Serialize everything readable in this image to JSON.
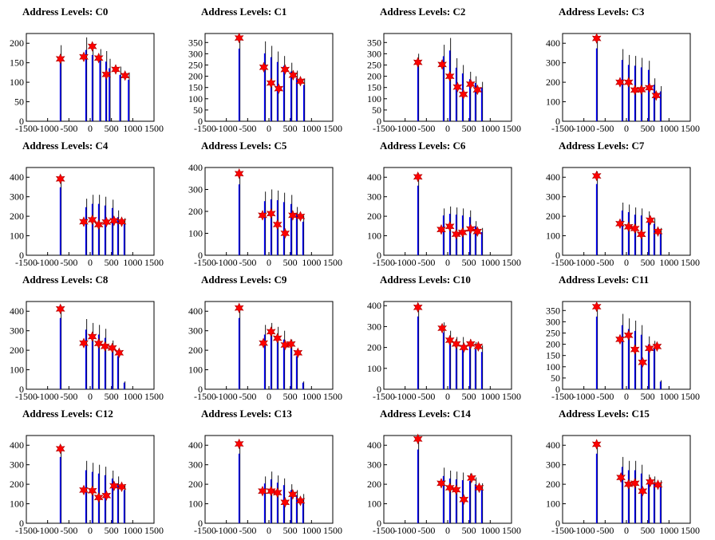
{
  "style": {
    "peak_color": "#0000ff",
    "marker_color": "#ff0000",
    "axis_color": "#000000",
    "background": "#ffffff"
  },
  "shared_axis": {
    "x_ticks": [
      -1500,
      -1000,
      -500,
      0,
      500,
      1000,
      1500
    ],
    "x_tick_labels": [
      "-1500",
      "-1000",
      "-500",
      "0",
      "500",
      "1000",
      "1500"
    ],
    "xlim": [
      -1500,
      1500
    ]
  },
  "chart_data": [
    {
      "type": "bar",
      "title": "Address Levels: C0",
      "ylim": [
        0,
        225
      ],
      "y_ticks": [
        0,
        50,
        100,
        150,
        200
      ],
      "peaks_x": [
        -700,
        -100,
        50,
        230,
        370,
        450,
        700,
        900
      ],
      "peaks_y": [
        195,
        215,
        200,
        185,
        180,
        160,
        140,
        125
      ],
      "markers_x": [
        -700,
        -150,
        50,
        200,
        380,
        600,
        820
      ],
      "markers_y": [
        160,
        165,
        192,
        162,
        120,
        133,
        117
      ]
    },
    {
      "type": "bar",
      "title": "Address Levels: C1",
      "ylim": [
        0,
        390
      ],
      "y_ticks": [
        0,
        50,
        100,
        150,
        200,
        250,
        300,
        350
      ],
      "peaks_x": [
        -700,
        -100,
        50,
        200,
        350,
        520,
        650,
        820
      ],
      "peaks_y": [
        380,
        355,
        335,
        310,
        290,
        260,
        225,
        190
      ],
      "markers_x": [
        -700,
        -120,
        50,
        230,
        380,
        570,
        740
      ],
      "markers_y": [
        370,
        240,
        170,
        145,
        230,
        205,
        178
      ]
    },
    {
      "type": "bar",
      "title": "Address Levels: C2",
      "ylim": [
        0,
        390
      ],
      "y_ticks": [
        0,
        50,
        100,
        150,
        200,
        250,
        300,
        350
      ],
      "peaks_x": [
        -700,
        -100,
        50,
        200,
        350,
        520,
        650,
        800
      ],
      "peaks_y": [
        300,
        340,
        370,
        280,
        250,
        220,
        200,
        175
      ],
      "markers_x": [
        -700,
        -130,
        50,
        230,
        370,
        540,
        700
      ],
      "markers_y": [
        262,
        252,
        200,
        152,
        120,
        165,
        140
      ]
    },
    {
      "type": "bar",
      "title": "Address Levels: C3",
      "ylim": [
        0,
        450
      ],
      "y_ticks": [
        0,
        100,
        200,
        300,
        400
      ],
      "peaks_x": [
        -700,
        -100,
        50,
        200,
        350,
        520,
        650,
        800
      ],
      "peaks_y": [
        440,
        370,
        340,
        335,
        325,
        310,
        220,
        180
      ],
      "markers_x": [
        -700,
        -150,
        50,
        200,
        350,
        540,
        700
      ],
      "markers_y": [
        425,
        200,
        200,
        160,
        162,
        172,
        132
      ]
    },
    {
      "type": "bar",
      "title": "Address Levels: C4",
      "ylim": [
        0,
        450
      ],
      "y_ticks": [
        0,
        100,
        200,
        300,
        400
      ],
      "peaks_x": [
        -700,
        -100,
        50,
        200,
        350,
        520,
        650,
        800
      ],
      "peaks_y": [
        410,
        290,
        310,
        310,
        300,
        285,
        230,
        190
      ],
      "markers_x": [
        -700,
        -150,
        50,
        200,
        380,
        560,
        740
      ],
      "markers_y": [
        392,
        172,
        182,
        157,
        170,
        177,
        172
      ]
    },
    {
      "type": "bar",
      "title": "Address Levels: C5",
      "ylim": [
        0,
        400
      ],
      "y_ticks": [
        0,
        100,
        200,
        300,
        400
      ],
      "peaks_x": [
        -700,
        -100,
        50,
        200,
        350,
        520,
        650,
        800
      ],
      "peaks_y": [
        380,
        290,
        300,
        295,
        285,
        275,
        220,
        180
      ],
      "markers_x": [
        -700,
        -150,
        50,
        200,
        380,
        560,
        740
      ],
      "markers_y": [
        372,
        182,
        190,
        140,
        100,
        182,
        177
      ]
    },
    {
      "type": "bar",
      "title": "Address Levels: C6",
      "ylim": [
        0,
        450
      ],
      "y_ticks": [
        0,
        100,
        200,
        300,
        400
      ],
      "peaks_x": [
        -700,
        -100,
        50,
        200,
        350,
        520,
        650,
        800
      ],
      "peaks_y": [
        420,
        240,
        250,
        245,
        240,
        230,
        175,
        140
      ],
      "markers_x": [
        -700,
        -150,
        50,
        200,
        350,
        540,
        700
      ],
      "markers_y": [
        402,
        132,
        148,
        108,
        117,
        135,
        122
      ]
    },
    {
      "type": "bar",
      "title": "Address Levels: C7",
      "ylim": [
        0,
        450
      ],
      "y_ticks": [
        0,
        100,
        200,
        300,
        400
      ],
      "peaks_x": [
        -700,
        -100,
        50,
        200,
        350,
        520,
        650,
        800
      ],
      "peaks_y": [
        430,
        270,
        260,
        245,
        240,
        225,
        190,
        140
      ],
      "markers_x": [
        -700,
        -150,
        50,
        200,
        350,
        560,
        740
      ],
      "markers_y": [
        407,
        162,
        146,
        137,
        107,
        180,
        122
      ]
    },
    {
      "type": "bar",
      "title": "Address Levels: C8",
      "ylim": [
        0,
        450
      ],
      "y_ticks": [
        0,
        100,
        200,
        300,
        400
      ],
      "peaks_x": [
        -700,
        -100,
        50,
        200,
        350,
        520,
        650,
        800
      ],
      "peaks_y": [
        430,
        360,
        340,
        330,
        310,
        250,
        200,
        40
      ],
      "markers_x": [
        -700,
        -150,
        50,
        200,
        350,
        520,
        680
      ],
      "markers_y": [
        412,
        237,
        270,
        235,
        220,
        212,
        187
      ]
    },
    {
      "type": "bar",
      "title": "Address Levels: C9",
      "ylim": [
        0,
        450
      ],
      "y_ticks": [
        0,
        100,
        200,
        300,
        400
      ],
      "peaks_x": [
        -700,
        -100,
        50,
        200,
        350,
        520,
        650,
        800
      ],
      "peaks_y": [
        430,
        330,
        340,
        320,
        300,
        255,
        200,
        40
      ],
      "markers_x": [
        -700,
        -130,
        50,
        200,
        380,
        520,
        680
      ],
      "markers_y": [
        417,
        237,
        295,
        262,
        227,
        232,
        187
      ]
    },
    {
      "type": "bar",
      "title": "Address Levels: C10",
      "ylim": [
        0,
        420
      ],
      "y_ticks": [
        0,
        100,
        200,
        300,
        400
      ],
      "peaks_x": [
        -700,
        -100,
        50,
        200,
        350,
        520,
        650,
        800
      ],
      "peaks_y": [
        410,
        320,
        280,
        250,
        250,
        240,
        225,
        210
      ],
      "markers_x": [
        -700,
        -130,
        50,
        200,
        380,
        540,
        720
      ],
      "markers_y": [
        392,
        292,
        235,
        217,
        200,
        217,
        205
      ]
    },
    {
      "type": "bar",
      "title": "Address Levels: C11",
      "ylim": [
        0,
        390
      ],
      "y_ticks": [
        0,
        50,
        100,
        150,
        200,
        250,
        300,
        350
      ],
      "peaks_x": [
        -700,
        -100,
        50,
        200,
        350,
        520,
        650,
        800
      ],
      "peaks_y": [
        380,
        335,
        315,
        305,
        285,
        235,
        215,
        40
      ],
      "markers_x": [
        -700,
        -150,
        50,
        200,
        380,
        540,
        720
      ],
      "markers_y": [
        367,
        222,
        240,
        177,
        120,
        182,
        190
      ]
    },
    {
      "type": "bar",
      "title": "Address Levels: C12",
      "ylim": [
        0,
        450
      ],
      "y_ticks": [
        0,
        100,
        200,
        300,
        400
      ],
      "peaks_x": [
        -700,
        -100,
        50,
        200,
        350,
        520,
        650,
        800
      ],
      "peaks_y": [
        400,
        320,
        310,
        300,
        290,
        270,
        240,
        200
      ],
      "markers_x": [
        -700,
        -150,
        50,
        200,
        380,
        560,
        740
      ],
      "markers_y": [
        382,
        170,
        167,
        132,
        142,
        192,
        187
      ]
    },
    {
      "type": "bar",
      "title": "Address Levels: C13",
      "ylim": [
        0,
        450
      ],
      "y_ticks": [
        0,
        100,
        200,
        300,
        400
      ],
      "peaks_x": [
        -700,
        -100,
        50,
        200,
        350,
        520,
        650,
        800
      ],
      "peaks_y": [
        420,
        240,
        265,
        245,
        230,
        200,
        170,
        150
      ],
      "markers_x": [
        -700,
        -150,
        50,
        200,
        380,
        560,
        740
      ],
      "markers_y": [
        407,
        165,
        165,
        157,
        107,
        148,
        115
      ]
    },
    {
      "type": "bar",
      "title": "Address Levels: C14",
      "ylim": [
        0,
        450
      ],
      "y_ticks": [
        0,
        100,
        200,
        300,
        400
      ],
      "peaks_x": [
        -700,
        -100,
        50,
        200,
        350,
        520,
        650,
        800
      ],
      "peaks_y": [
        445,
        285,
        270,
        265,
        260,
        255,
        235,
        205
      ],
      "markers_x": [
        -700,
        -150,
        50,
        200,
        380,
        560,
        740
      ],
      "markers_y": [
        432,
        205,
        182,
        172,
        122,
        232,
        182
      ]
    },
    {
      "type": "bar",
      "title": "Address Levels: C15",
      "ylim": [
        0,
        450
      ],
      "y_ticks": [
        0,
        100,
        200,
        300,
        400
      ],
      "peaks_x": [
        -700,
        -100,
        50,
        200,
        350,
        520,
        650,
        800
      ],
      "peaks_y": [
        420,
        340,
        320,
        320,
        300,
        250,
        240,
        220
      ],
      "markers_x": [
        -700,
        -130,
        50,
        200,
        380,
        560,
        740
      ],
      "markers_y": [
        405,
        235,
        200,
        205,
        165,
        212,
        197
      ]
    }
  ]
}
